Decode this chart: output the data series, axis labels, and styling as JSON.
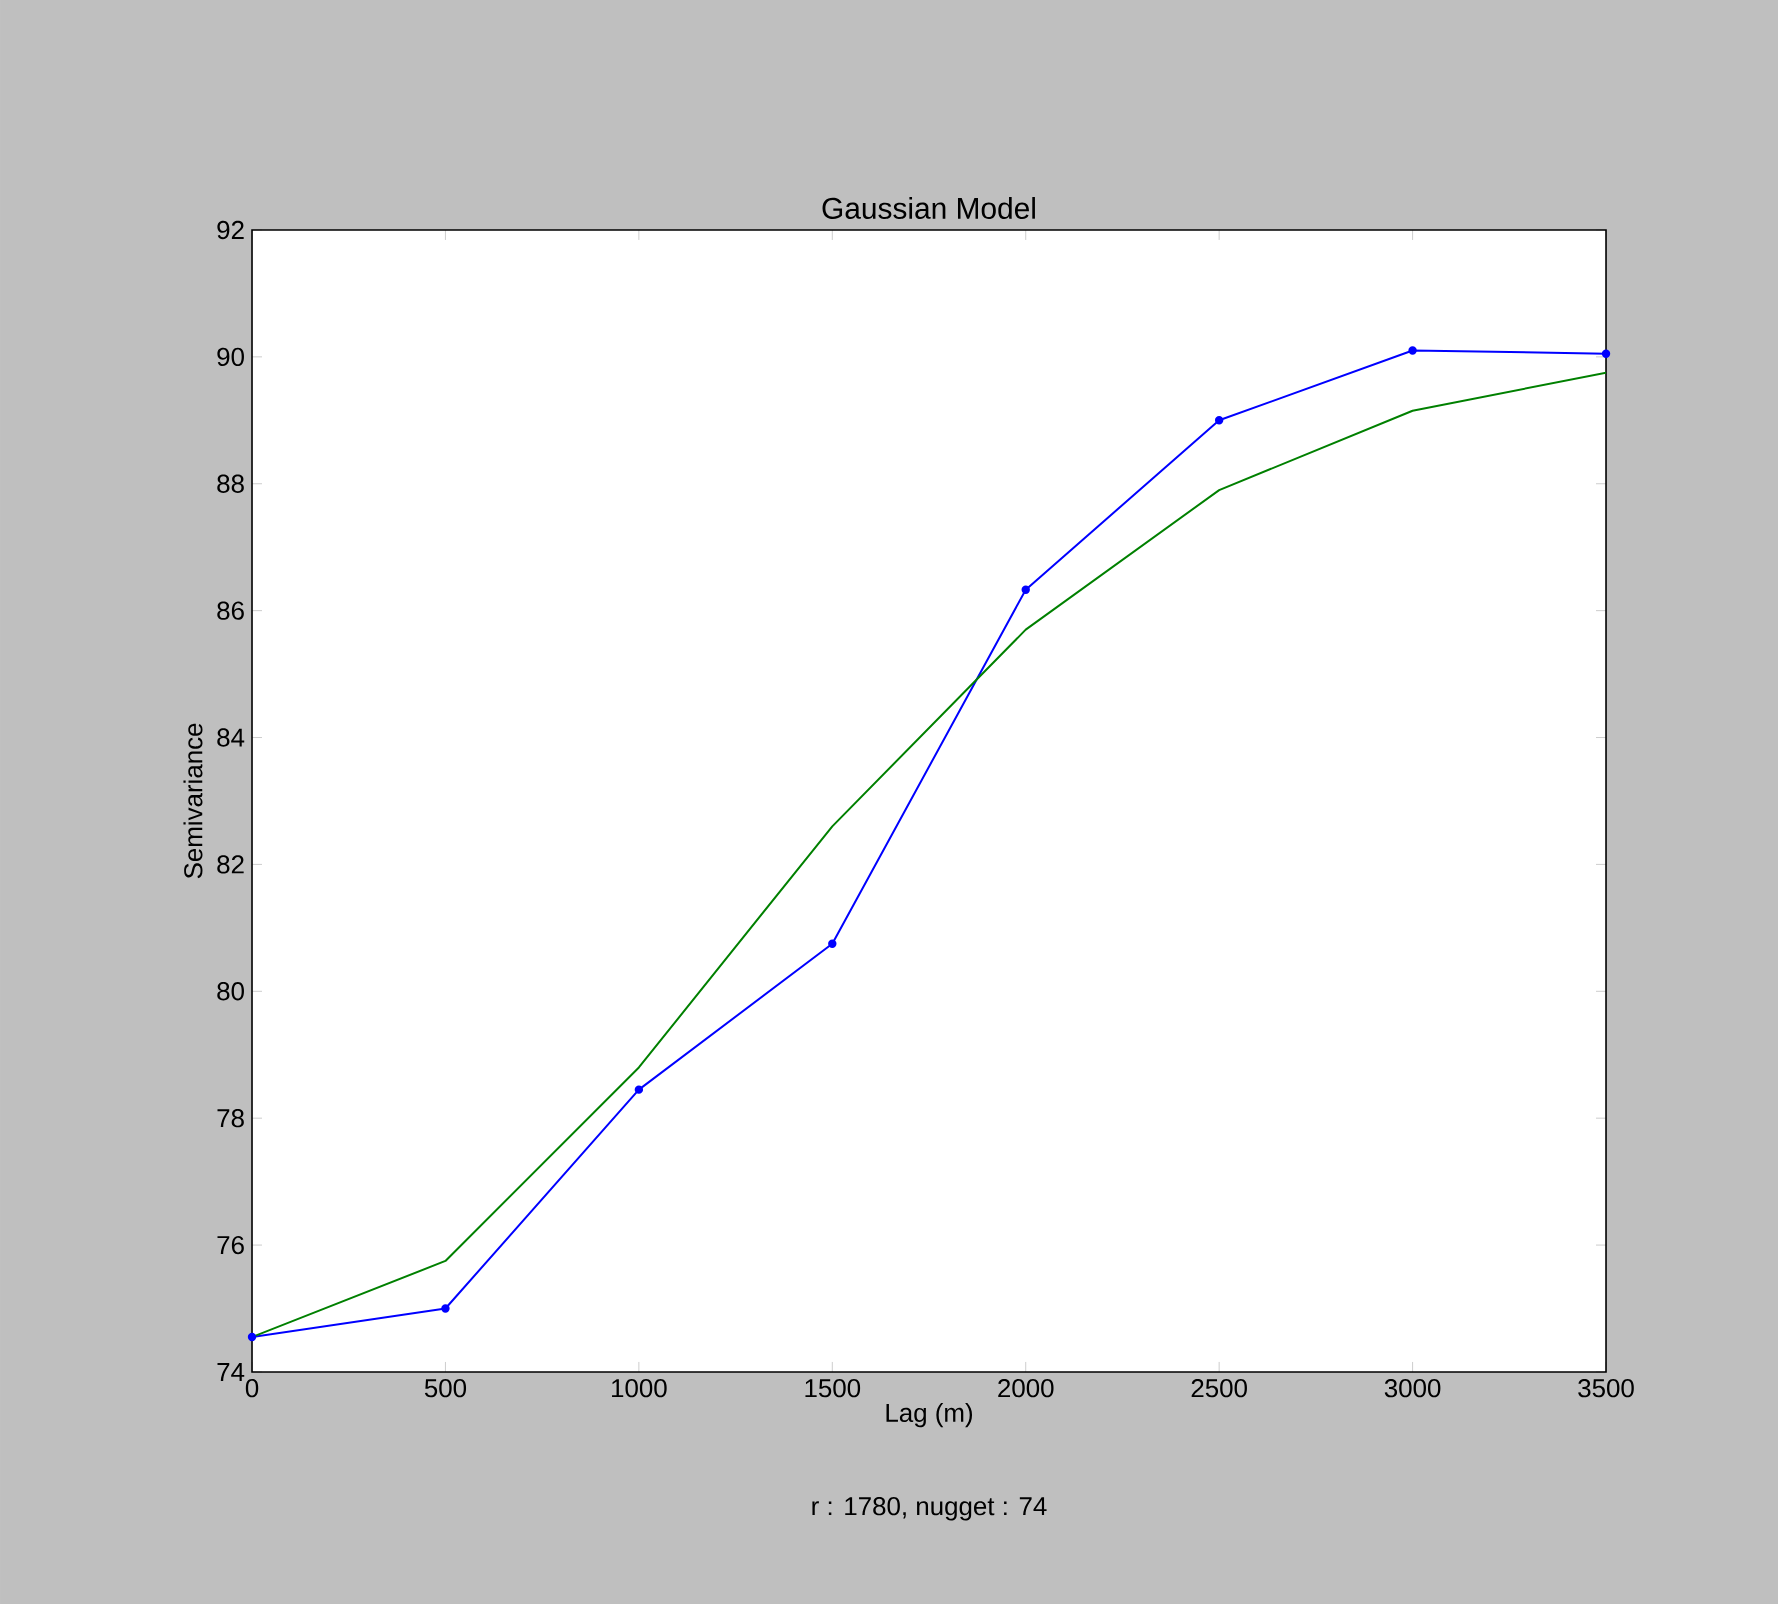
{
  "chart_data": {
    "type": "line",
    "title": "Gaussian Model",
    "xlabel": "Lag (m)",
    "ylabel": "Semivariance",
    "annotations": [
      "r : 1780, nugget : 74"
    ],
    "x": [
      0,
      500,
      1000,
      1500,
      2000,
      2500,
      3000,
      3500
    ],
    "series": [
      {
        "color": "#0000ff",
        "marker": "circle",
        "values": [
          74.55,
          75.0,
          78.45,
          80.75,
          86.33,
          89.0,
          90.1,
          90.05
        ]
      },
      {
        "color": "#008000",
        "marker": "none",
        "values": [
          74.55,
          75.75,
          78.8,
          82.6,
          85.7,
          87.9,
          89.15,
          89.75
        ]
      }
    ],
    "xlim": [
      0,
      3500
    ],
    "xticks": [
      0,
      500,
      1000,
      1500,
      2000,
      2500,
      3000,
      3500
    ],
    "ylim": [
      74,
      92
    ],
    "yticks": [
      74,
      76,
      78,
      80,
      82,
      84,
      86,
      88,
      90,
      92
    ],
    "grid": false
  }
}
